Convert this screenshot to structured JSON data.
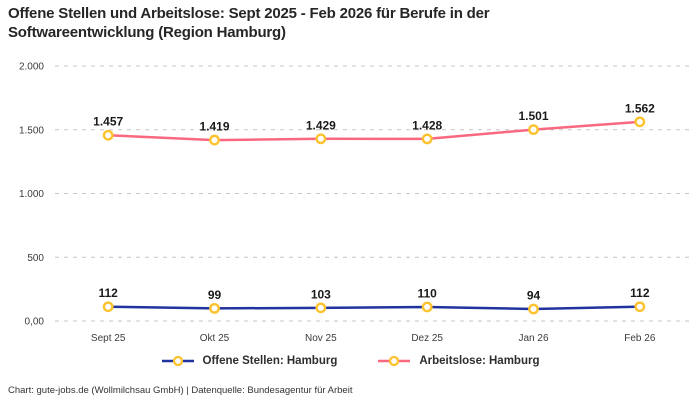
{
  "title": {
    "line1": "Offene Stellen und Arbeitslose: Sept 2025 - Feb 2026 für Berufe in der",
    "line2": "Softwareentwicklung (Region Hamburg)"
  },
  "footer": "Chart: gute-jobs.de (Wollmilchsau GmbH) | Datenquelle: Bundesagentur für Arbeit",
  "colors": {
    "grid": "#c6c6c6",
    "marker_ring": "#fdc32e",
    "marker_fill": "#ffffff",
    "data_label": "#1a1a1a",
    "axis_text": "#3c3c3c",
    "series_offene_stellen": "#21339e",
    "series_arbeitslose": "#f8697f"
  },
  "chart_data": {
    "type": "line",
    "title": "Offene Stellen und Arbeitslose: Sept 2025 - Feb 2026 für Berufe in der Softwareentwicklung (Region Hamburg)",
    "categories": [
      "Sept 25",
      "Okt 25",
      "Nov 25",
      "Dez 25",
      "Jan 26",
      "Feb 26"
    ],
    "series": [
      {
        "name": "Offene Stellen: Hamburg",
        "color": "#21339e",
        "values": [
          112,
          99,
          103,
          110,
          94,
          112
        ],
        "labels": [
          "112",
          "99",
          "103",
          "110",
          "94",
          "112"
        ]
      },
      {
        "name": "Arbeitslose: Hamburg",
        "color": "#f8697f",
        "values": [
          1457,
          1419,
          1429,
          1428,
          1501,
          1562
        ],
        "labels": [
          "1.457",
          "1.419",
          "1.429",
          "1.428",
          "1.501",
          "1.562"
        ]
      }
    ],
    "y_ticks": [
      {
        "value": 0,
        "label": "0,00"
      },
      {
        "value": 500,
        "label": "500"
      },
      {
        "value": 1000,
        "label": "1.000"
      },
      {
        "value": 1500,
        "label": "1.500"
      },
      {
        "value": 2000,
        "label": "2.000"
      }
    ],
    "ylim": [
      0,
      2000
    ],
    "grid": "dashed-horizontal",
    "legend_position": "bottom",
    "xlabel": "",
    "ylabel": ""
  }
}
